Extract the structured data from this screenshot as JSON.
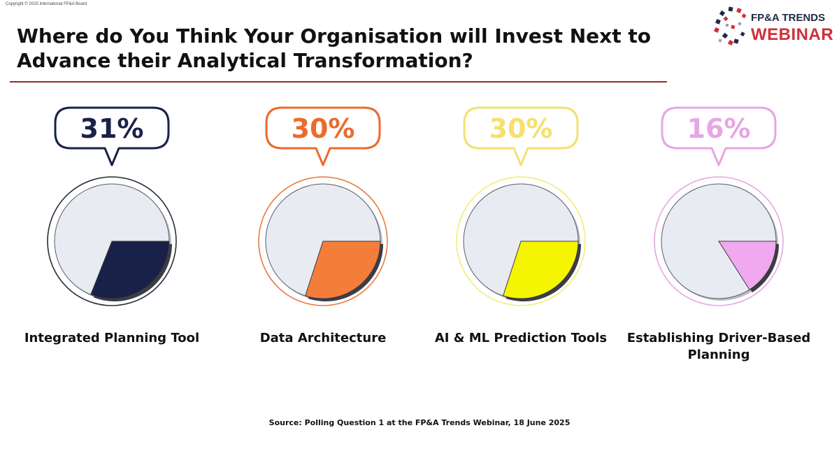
{
  "copyright": "Copyright © 2025 International FP&A Board",
  "title_line1": "Where do You Think Your Organisation will Invest Next to",
  "title_line2": "Advance their Analytical Transformation?",
  "logo": {
    "top": "FP&A TRENDS",
    "bottom": "WEBINAR"
  },
  "source": "Source: Polling Question 1 at the FP&A Trends Webinar, 18 June 2025",
  "colors": {
    "rule": "#9b2a1e",
    "pie_background": "#e9ebf2"
  },
  "chart_data": {
    "type": "pie",
    "unit": "%",
    "items": [
      {
        "label": "Integrated Planning Tool",
        "label_lines": [
          "Integrated Planning Tool"
        ],
        "value": 31,
        "display": "31%",
        "color": "#1a2148",
        "text_color": "#1a2148",
        "ring_color": "#2a2a3a"
      },
      {
        "label": "Data Architecture",
        "label_lines": [
          "Data Architecture"
        ],
        "value": 30,
        "display": "30%",
        "color": "#f47d3a",
        "text_color": "#ec6a2c",
        "ring_color": "#e8793e"
      },
      {
        "label": "AI & ML Prediction Tools",
        "label_lines": [
          "AI & ML Prediction Tools"
        ],
        "value": 30,
        "display": "30%",
        "color": "#f5f500",
        "text_color": "#f5e070",
        "ring_color": "#f2ec7a"
      },
      {
        "label": "Establishing Driver-Based Planning",
        "label_lines": [
          "Establishing Driver-Based",
          "Planning"
        ],
        "value": 16,
        "display": "16%",
        "color": "#f0a8ee",
        "text_color": "#e6a6e4",
        "ring_color": "#e2a8e0"
      }
    ]
  }
}
